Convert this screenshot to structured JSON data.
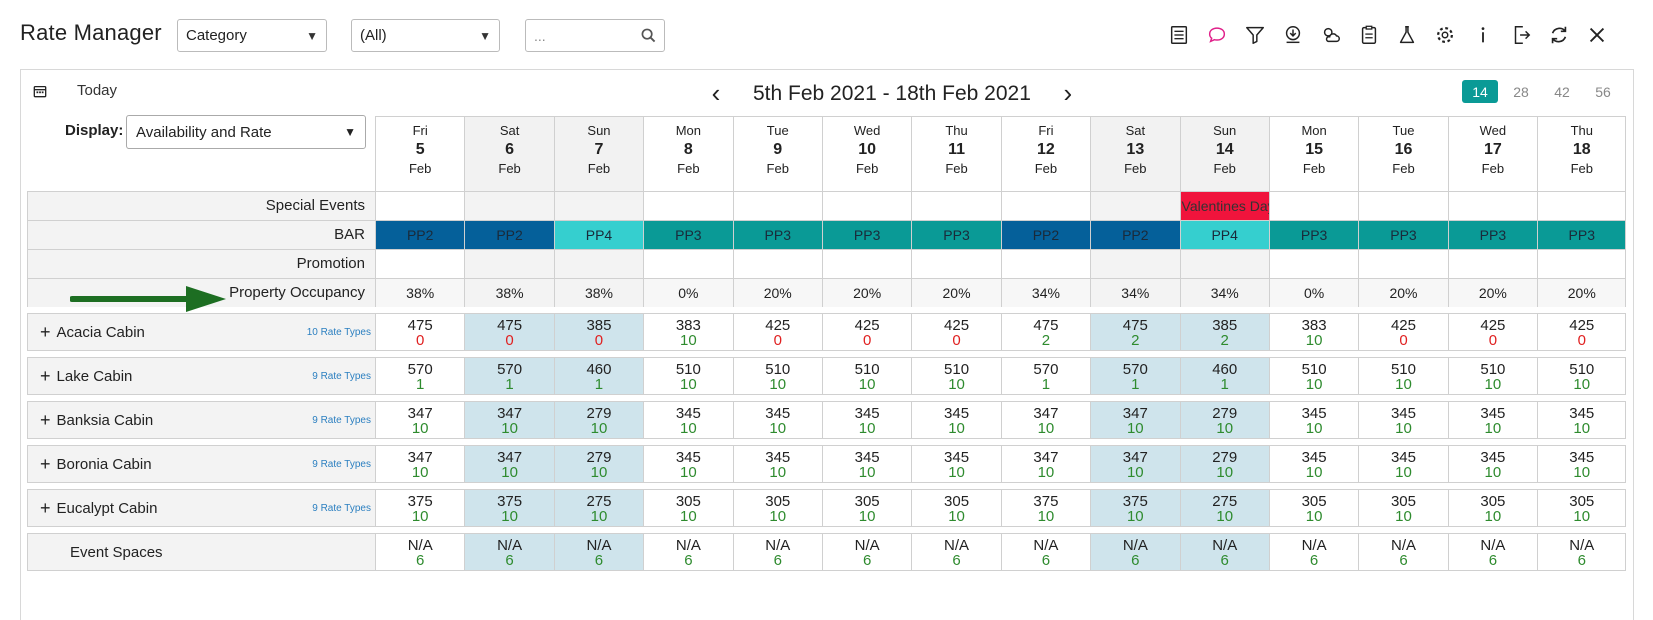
{
  "header": {
    "title": "Rate Manager",
    "category_select": "Category",
    "filter_select": "(All)",
    "search_placeholder": "..."
  },
  "toolbar": {
    "icons": [
      "list-icon",
      "chat-icon",
      "filter-icon",
      "download-icon",
      "weather-icon",
      "clipboard-icon",
      "flask-icon",
      "gear-icon",
      "info-icon",
      "export-icon",
      "refresh-icon",
      "close-icon"
    ],
    "accent_color": "#e0218a"
  },
  "nav": {
    "today_label": "Today",
    "range_label": "5th Feb 2021 - 18th Feb 2021",
    "span_options": [
      "14",
      "28",
      "42",
      "56"
    ],
    "active_span": "14"
  },
  "display": {
    "label": "Display:",
    "value": "Availability and Rate"
  },
  "days": [
    {
      "dow": "Fri",
      "num": "5",
      "mon": "Feb",
      "we": false
    },
    {
      "dow": "Sat",
      "num": "6",
      "mon": "Feb",
      "we": true
    },
    {
      "dow": "Sun",
      "num": "7",
      "mon": "Feb",
      "we": true
    },
    {
      "dow": "Mon",
      "num": "8",
      "mon": "Feb",
      "we": false
    },
    {
      "dow": "Tue",
      "num": "9",
      "mon": "Feb",
      "we": false
    },
    {
      "dow": "Wed",
      "num": "10",
      "mon": "Feb",
      "we": false
    },
    {
      "dow": "Thu",
      "num": "11",
      "mon": "Feb",
      "we": false
    },
    {
      "dow": "Fri",
      "num": "12",
      "mon": "Feb",
      "we": false
    },
    {
      "dow": "Sat",
      "num": "13",
      "mon": "Feb",
      "we": true
    },
    {
      "dow": "Sun",
      "num": "14",
      "mon": "Feb",
      "we": true
    },
    {
      "dow": "Mon",
      "num": "15",
      "mon": "Feb",
      "we": false
    },
    {
      "dow": "Tue",
      "num": "16",
      "mon": "Feb",
      "we": false
    },
    {
      "dow": "Wed",
      "num": "17",
      "mon": "Feb",
      "we": false
    },
    {
      "dow": "Thu",
      "num": "18",
      "mon": "Feb",
      "we": false
    }
  ],
  "rows": {
    "special_events_label": "Special Events",
    "special_events": [
      "",
      "",
      "",
      "",
      "",
      "",
      "",
      "",
      "",
      "Valentines Day",
      "",
      "",
      "",
      ""
    ],
    "bar_label": "BAR",
    "bar": [
      "PP2",
      "PP2",
      "PP4",
      "PP3",
      "PP3",
      "PP3",
      "PP3",
      "PP2",
      "PP2",
      "PP4",
      "PP3",
      "PP3",
      "PP3",
      "PP3"
    ],
    "bar_colors": {
      "PP2": "#05609a",
      "PP3": "#0a9a96",
      "PP4": "#35cfcf"
    },
    "promotion_label": "Promotion",
    "occupancy_label": "Property Occupancy",
    "occupancy": [
      "38%",
      "38%",
      "38%",
      "0%",
      "20%",
      "20%",
      "20%",
      "34%",
      "34%",
      "34%",
      "0%",
      "20%",
      "20%",
      "20%"
    ]
  },
  "rooms": [
    {
      "name": "Acacia Cabin",
      "rate_types": "10 Rate Types",
      "rates": [
        "475",
        "475",
        "385",
        "383",
        "425",
        "425",
        "425",
        "475",
        "475",
        "385",
        "383",
        "425",
        "425",
        "425"
      ],
      "avail": [
        "0",
        "0",
        "0",
        "10",
        "0",
        "0",
        "0",
        "2",
        "2",
        "2",
        "10",
        "0",
        "0",
        "0"
      ]
    },
    {
      "name": "Lake Cabin",
      "rate_types": "9 Rate Types",
      "rates": [
        "570",
        "570",
        "460",
        "510",
        "510",
        "510",
        "510",
        "570",
        "570",
        "460",
        "510",
        "510",
        "510",
        "510"
      ],
      "avail": [
        "1",
        "1",
        "1",
        "10",
        "10",
        "10",
        "10",
        "1",
        "1",
        "1",
        "10",
        "10",
        "10",
        "10"
      ]
    },
    {
      "name": "Banksia Cabin",
      "rate_types": "9 Rate Types",
      "rates": [
        "347",
        "347",
        "279",
        "345",
        "345",
        "345",
        "345",
        "347",
        "347",
        "279",
        "345",
        "345",
        "345",
        "345"
      ],
      "avail": [
        "10",
        "10",
        "10",
        "10",
        "10",
        "10",
        "10",
        "10",
        "10",
        "10",
        "10",
        "10",
        "10",
        "10"
      ]
    },
    {
      "name": "Boronia Cabin",
      "rate_types": "9 Rate Types",
      "rates": [
        "347",
        "347",
        "279",
        "345",
        "345",
        "345",
        "345",
        "347",
        "347",
        "279",
        "345",
        "345",
        "345",
        "345"
      ],
      "avail": [
        "10",
        "10",
        "10",
        "10",
        "10",
        "10",
        "10",
        "10",
        "10",
        "10",
        "10",
        "10",
        "10",
        "10"
      ]
    },
    {
      "name": "Eucalypt Cabin",
      "rate_types": "9 Rate Types",
      "rates": [
        "375",
        "375",
        "275",
        "305",
        "305",
        "305",
        "305",
        "375",
        "375",
        "275",
        "305",
        "305",
        "305",
        "305"
      ],
      "avail": [
        "10",
        "10",
        "10",
        "10",
        "10",
        "10",
        "10",
        "10",
        "10",
        "10",
        "10",
        "10",
        "10",
        "10"
      ]
    }
  ],
  "event_spaces": {
    "name": "Event Spaces",
    "rates": [
      "N/A",
      "N/A",
      "N/A",
      "N/A",
      "N/A",
      "N/A",
      "N/A",
      "N/A",
      "N/A",
      "N/A",
      "N/A",
      "N/A",
      "N/A",
      "N/A"
    ],
    "avail": [
      "6",
      "6",
      "6",
      "6",
      "6",
      "6",
      "6",
      "6",
      "6",
      "6",
      "6",
      "6",
      "6",
      "6"
    ]
  }
}
